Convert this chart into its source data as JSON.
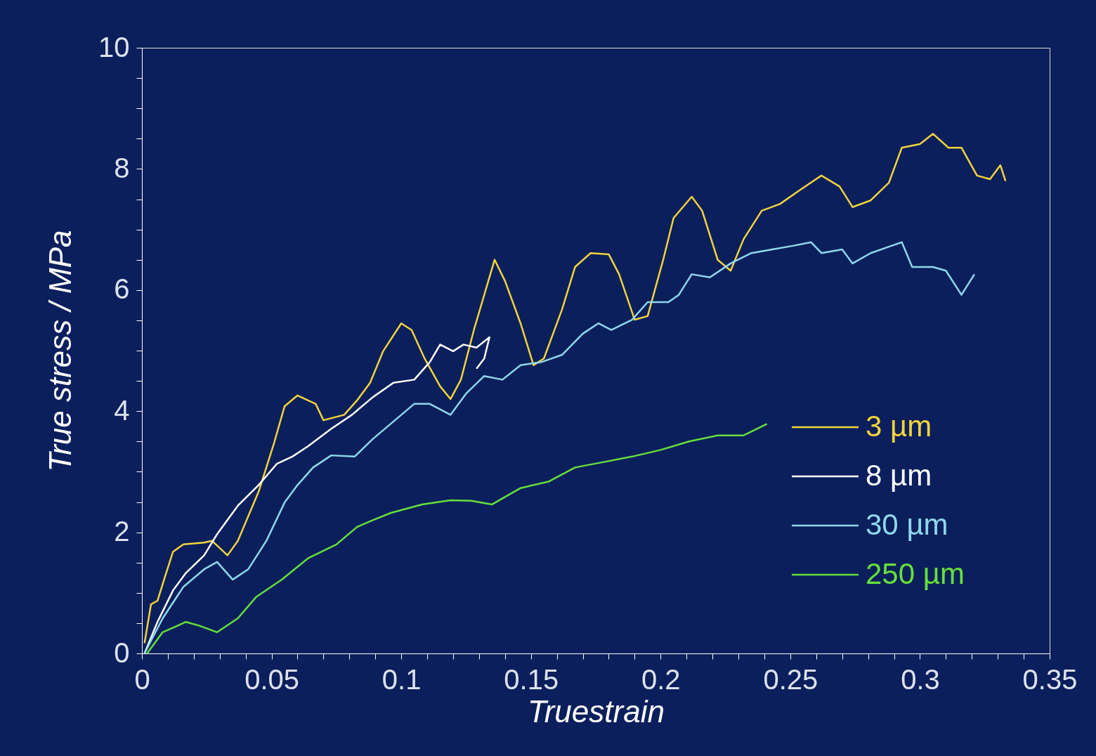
{
  "chart_data": {
    "type": "line",
    "xlabel": "Truestrain",
    "ylabel": "True stress / MPa",
    "xlim": [
      0,
      0.35
    ],
    "ylim": [
      0,
      10
    ],
    "xticks": [
      0,
      {
        "value": 0.01,
        "label": null
      },
      {
        "value": 0.02,
        "label": null
      },
      {
        "value": 0.03,
        "label": null
      },
      {
        "value": 0.04,
        "label": null
      },
      0.05,
      {
        "value": 0.06,
        "label": null
      },
      {
        "value": 0.07,
        "label": null
      },
      {
        "value": 0.08,
        "label": null
      },
      {
        "value": 0.09,
        "label": null
      },
      0.1,
      {
        "value": 0.11,
        "label": null
      },
      {
        "value": 0.12,
        "label": null
      },
      {
        "value": 0.13,
        "label": null
      },
      {
        "value": 0.14,
        "label": null
      },
      0.15,
      {
        "value": 0.16,
        "label": null
      },
      {
        "value": 0.17,
        "label": null
      },
      {
        "value": 0.18,
        "label": null
      },
      {
        "value": 0.19,
        "label": null
      },
      0.2,
      {
        "value": 0.21,
        "label": null
      },
      {
        "value": 0.22,
        "label": null
      },
      {
        "value": 0.23,
        "label": null
      },
      {
        "value": 0.24,
        "label": null
      },
      0.25,
      {
        "value": 0.26,
        "label": null
      },
      {
        "value": 0.27,
        "label": null
      },
      {
        "value": 0.28,
        "label": null
      },
      {
        "value": 0.29,
        "label": null
      },
      0.3,
      {
        "value": 0.31,
        "label": null
      },
      {
        "value": 0.32,
        "label": null
      },
      {
        "value": 0.33,
        "label": null
      },
      {
        "value": 0.34,
        "label": null
      },
      0.35
    ],
    "yticks": [
      0,
      {
        "value": 0.5,
        "label": null
      },
      {
        "value": 1,
        "label": null
      },
      {
        "value": 1.5,
        "label": null
      },
      2,
      {
        "value": 2.5,
        "label": null
      },
      {
        "value": 3,
        "label": null
      },
      {
        "value": 3.5,
        "label": null
      },
      4,
      {
        "value": 4.5,
        "label": null
      },
      {
        "value": 5,
        "label": null
      },
      {
        "value": 5.5,
        "label": null
      },
      6,
      {
        "value": 6.5,
        "label": null
      },
      {
        "value": 7,
        "label": null
      },
      {
        "value": 7.5,
        "label": null
      },
      8,
      {
        "value": 8.5,
        "label": null
      },
      {
        "value": 9,
        "label": null
      },
      {
        "value": 9.5,
        "label": null
      },
      10
    ],
    "grid": false,
    "legend": "right",
    "marker": "none",
    "line_style": "solid",
    "series": [
      {
        "name": "3 µm",
        "color": "#f2d43a",
        "x": [
          0.001,
          0.0035,
          0.006,
          0.009,
          0.012,
          0.016,
          0.024,
          0.027,
          0.033,
          0.037,
          0.045,
          0.051,
          0.055,
          0.06,
          0.067,
          0.07,
          0.078,
          0.083,
          0.088,
          0.093,
          0.1,
          0.104,
          0.109,
          0.115,
          0.119,
          0.123,
          0.128,
          0.132,
          0.136,
          0.14,
          0.146,
          0.151,
          0.155,
          0.162,
          0.167,
          0.173,
          0.18,
          0.184,
          0.19,
          0.195,
          0.201,
          0.205,
          0.212,
          0.216,
          0.222,
          0.227,
          0.232,
          0.239,
          0.246,
          0.254,
          0.262,
          0.269,
          0.274,
          0.281,
          0.288,
          0.293,
          0.3,
          0.305,
          0.311,
          0.316,
          0.322,
          0.327,
          0.331,
          0.333
        ],
        "values": [
          0.17,
          0.81,
          0.87,
          1.28,
          1.68,
          1.8,
          1.83,
          1.86,
          1.62,
          1.86,
          2.67,
          3.48,
          4.08,
          4.26,
          4.12,
          3.85,
          3.94,
          4.18,
          4.47,
          4.99,
          5.45,
          5.34,
          4.87,
          4.41,
          4.2,
          4.52,
          5.34,
          5.92,
          6.5,
          6.15,
          5.45,
          4.76,
          4.87,
          5.68,
          6.38,
          6.61,
          6.59,
          6.26,
          5.51,
          5.57,
          6.5,
          7.19,
          7.54,
          7.31,
          6.5,
          6.32,
          6.84,
          7.31,
          7.42,
          7.66,
          7.89,
          7.71,
          7.37,
          7.48,
          7.77,
          8.35,
          8.41,
          8.58,
          8.35,
          8.35,
          7.89,
          7.83,
          8.06,
          7.8
        ]
      },
      {
        "name": "8 µm",
        "color": "#ffffff",
        "x": [
          0.001,
          0.006,
          0.012,
          0.017,
          0.024,
          0.029,
          0.037,
          0.045,
          0.052,
          0.058,
          0.064,
          0.073,
          0.081,
          0.089,
          0.097,
          0.105,
          0.111,
          0.115,
          0.12,
          0.124,
          0.129,
          0.134,
          0.132,
          0.129
        ],
        "values": [
          0,
          0.52,
          1.04,
          1.33,
          1.62,
          1.97,
          2.44,
          2.78,
          3.13,
          3.25,
          3.42,
          3.71,
          3.94,
          4.23,
          4.47,
          4.52,
          4.81,
          5.1,
          4.99,
          5.1,
          5.05,
          5.22,
          4.87,
          4.7
        ]
      },
      {
        "name": "30 µm",
        "color": "#8fd8ec",
        "x": [
          0.001,
          0.008,
          0.016,
          0.024,
          0.029,
          0.035,
          0.041,
          0.048,
          0.055,
          0.06,
          0.066,
          0.073,
          0.082,
          0.089,
          0.097,
          0.105,
          0.111,
          0.119,
          0.125,
          0.132,
          0.139,
          0.146,
          0.154,
          0.162,
          0.17,
          0.176,
          0.181,
          0.189,
          0.195,
          0.203,
          0.207,
          0.212,
          0.219,
          0.227,
          0.235,
          0.243,
          0.251,
          0.258,
          0.262,
          0.27,
          0.274,
          0.281,
          0.289,
          0.293,
          0.297,
          0.305,
          0.31,
          0.316,
          0.321
        ],
        "values": [
          0,
          0.58,
          1.1,
          1.39,
          1.51,
          1.22,
          1.39,
          1.86,
          2.49,
          2.78,
          3.07,
          3.27,
          3.25,
          3.54,
          3.83,
          4.12,
          4.12,
          3.94,
          4.29,
          4.58,
          4.52,
          4.76,
          4.81,
          4.93,
          5.28,
          5.45,
          5.34,
          5.51,
          5.8,
          5.8,
          5.92,
          6.26,
          6.21,
          6.44,
          6.61,
          6.67,
          6.73,
          6.79,
          6.61,
          6.67,
          6.44,
          6.61,
          6.73,
          6.79,
          6.38,
          6.38,
          6.32,
          5.92,
          6.26
        ]
      },
      {
        "name": "250 µm",
        "color": "#66e03a",
        "x": [
          0.002,
          0.008,
          0.017,
          0.022,
          0.029,
          0.037,
          0.044,
          0.054,
          0.064,
          0.075,
          0.083,
          0.089,
          0.096,
          0.108,
          0.119,
          0.127,
          0.135,
          0.146,
          0.157,
          0.167,
          0.178,
          0.189,
          0.2,
          0.211,
          0.222,
          0.232,
          0.241
        ],
        "values": [
          0,
          0.35,
          0.52,
          0.46,
          0.35,
          0.58,
          0.93,
          1.22,
          1.57,
          1.8,
          2.09,
          2.2,
          2.32,
          2.46,
          2.53,
          2.52,
          2.46,
          2.73,
          2.84,
          3.07,
          3.16,
          3.25,
          3.36,
          3.5,
          3.6,
          3.6,
          3.79
        ]
      }
    ]
  }
}
